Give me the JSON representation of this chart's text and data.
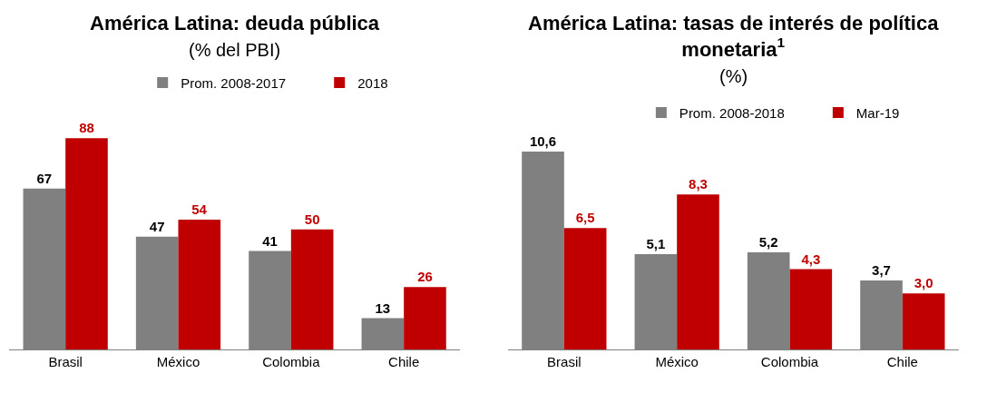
{
  "chart_data": [
    {
      "type": "bar",
      "title": "América Latina: deuda pública",
      "subtitle": "(% del PBI)",
      "categories": [
        "Brasil",
        "México",
        "Colombia",
        "Chile"
      ],
      "series": [
        {
          "name": "Prom. 2008-2017",
          "color": "#808080",
          "values": [
            67,
            47,
            41,
            13
          ]
        },
        {
          "name": "2018",
          "color": "#c00000",
          "values": [
            88,
            54,
            50,
            26
          ]
        }
      ],
      "data_labels": true,
      "legend": "top"
    },
    {
      "type": "bar",
      "title": "América Latina: tasas de interés de política monetaria$^{1}$",
      "subtitle": "(%)",
      "categories": [
        "Brasil",
        "México",
        "Colombia",
        "Chile"
      ],
      "series": [
        {
          "name": "Prom. 2008-2018",
          "color": "#808080",
          "values": [
            10.6,
            5.1,
            5.2,
            3.7
          ],
          "value_labels": [
            "10,6",
            "5,1",
            "5,2",
            "3,7"
          ]
        },
        {
          "name": "Mar-19",
          "color": "#c00000",
          "values": [
            6.5,
            8.3,
            4.3,
            3.0
          ],
          "value_labels": [
            "6,5",
            "8,3",
            "4,3",
            "3,0"
          ]
        }
      ],
      "legend": "top"
    }
  ]
}
